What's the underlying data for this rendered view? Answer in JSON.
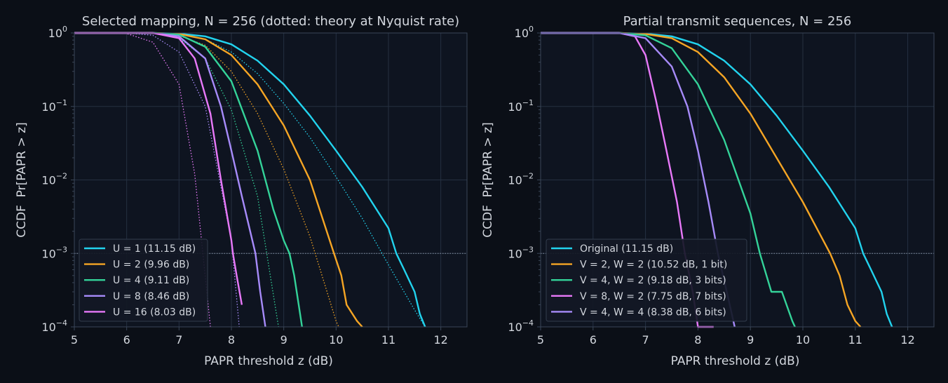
{
  "colors": {
    "background": "#0b0f17",
    "axes_face": "#0e1420",
    "grid": "#253041",
    "spine": "#3a4658",
    "text": "#d3d7de",
    "U1": "#22d3ee",
    "U2": "#f5a524",
    "U4": "#34d399",
    "U8": "#a78bfa",
    "U16": "#e879f9"
  },
  "chart_data": [
    {
      "type": "line",
      "title": "Selected mapping, N = 256 (dotted: theory at Nyquist rate)",
      "xlabel": "PAPR threshold z (dB)",
      "ylabel": "CCDF  Pr[PAPR > z]",
      "xlim": [
        5,
        12.5
      ],
      "ylim": [
        0.0001,
        1
      ],
      "yscale": "log",
      "xticks": [
        "5",
        "6",
        "7",
        "8",
        "9",
        "10",
        "11",
        "12"
      ],
      "yticks": [
        "10^0",
        "10^-1",
        "10^-2",
        "10^-3",
        "10^-4"
      ],
      "grid": true,
      "legend_position": "lower-left",
      "reference_line_y": 0.001,
      "series": [
        {
          "name": "U = 1 (11.15 dB)",
          "color": "#22d3ee",
          "style": "solid",
          "x": [
            5,
            6.5,
            7,
            7.5,
            8,
            8.5,
            9,
            9.5,
            10,
            10.5,
            11,
            11.15,
            11.3,
            11.5,
            11.6,
            11.7
          ],
          "y": [
            1,
            1,
            0.98,
            0.9,
            0.7,
            0.42,
            0.2,
            0.075,
            0.025,
            0.008,
            0.0022,
            0.001,
            0.0006,
            0.0003,
            0.00015,
            0.0001
          ]
        },
        {
          "name": "U = 2 (9.96 dB)",
          "color": "#f5a524",
          "style": "solid",
          "x": [
            5,
            6.5,
            7,
            7.5,
            8,
            8.5,
            9,
            9.5,
            9.96,
            10.1,
            10.2,
            10.4,
            10.5
          ],
          "y": [
            1,
            1,
            0.97,
            0.82,
            0.5,
            0.2,
            0.055,
            0.01,
            0.001,
            0.0005,
            0.0002,
            0.00012,
            0.0001
          ]
        },
        {
          "name": "U = 4 (9.11 dB)",
          "color": "#34d399",
          "style": "solid",
          "x": [
            5,
            6.5,
            7,
            7.5,
            8,
            8.5,
            8.8,
            9,
            9.11,
            9.2,
            9.35
          ],
          "y": [
            1,
            1,
            0.95,
            0.65,
            0.22,
            0.025,
            0.004,
            0.0015,
            0.001,
            0.0005,
            0.0001
          ]
        },
        {
          "name": "U = 8 (8.46 dB)",
          "color": "#a78bfa",
          "style": "solid",
          "x": [
            5,
            6.5,
            7,
            7.5,
            7.8,
            8,
            8.2,
            8.46,
            8.55,
            8.65
          ],
          "y": [
            1,
            1,
            0.9,
            0.45,
            0.1,
            0.025,
            0.006,
            0.001,
            0.0003,
            0.0001
          ]
        },
        {
          "name": "U = 16 (8.03 dB)",
          "color": "#e879f9",
          "style": "solid",
          "x": [
            5,
            6.5,
            7,
            7.3,
            7.6,
            7.8,
            8,
            8.03,
            8.1,
            8.2
          ],
          "y": [
            1,
            1,
            0.85,
            0.45,
            0.08,
            0.01,
            0.0015,
            0.001,
            0.0005,
            0.0002
          ]
        },
        {
          "name": "",
          "color": "#22d3ee",
          "style": "dotted",
          "x": [
            5,
            6.5,
            7,
            7.5,
            8,
            8.5,
            9,
            9.5,
            10,
            10.5,
            11,
            11.5,
            11.7
          ],
          "y": [
            1,
            1,
            0.96,
            0.82,
            0.55,
            0.28,
            0.11,
            0.038,
            0.011,
            0.003,
            0.0007,
            0.00017,
            0.0001
          ]
        },
        {
          "name": "",
          "color": "#f5a524",
          "style": "dotted",
          "x": [
            5,
            6.5,
            7,
            7.5,
            8,
            8.5,
            9,
            9.5,
            10,
            10.05
          ],
          "y": [
            1,
            1,
            0.92,
            0.68,
            0.3,
            0.08,
            0.014,
            0.0017,
            0.00012,
            0.0001
          ]
        },
        {
          "name": "",
          "color": "#34d399",
          "style": "dotted",
          "x": [
            5,
            6.5,
            7,
            7.5,
            8,
            8.5,
            8.9
          ],
          "y": [
            1,
            1,
            0.85,
            0.45,
            0.09,
            0.006,
            0.0001
          ]
        },
        {
          "name": "",
          "color": "#a78bfa",
          "style": "dotted",
          "x": [
            5,
            6,
            6.5,
            7,
            7.5,
            8,
            8.15
          ],
          "y": [
            1,
            1,
            0.93,
            0.55,
            0.1,
            0.0015,
            0.0001
          ]
        },
        {
          "name": "",
          "color": "#e879f9",
          "style": "dotted",
          "x": [
            5,
            6,
            6.5,
            7,
            7.3,
            7.6
          ],
          "y": [
            1,
            0.98,
            0.75,
            0.2,
            0.012,
            0.0001
          ]
        }
      ]
    },
    {
      "type": "line",
      "title": "Partial transmit sequences, N = 256",
      "xlabel": "PAPR threshold z (dB)",
      "ylabel": "CCDF  Pr[PAPR > z]",
      "xlim": [
        5,
        12.5
      ],
      "ylim": [
        0.0001,
        1
      ],
      "yscale": "log",
      "xticks": [
        "5",
        "6",
        "7",
        "8",
        "9",
        "10",
        "11",
        "12"
      ],
      "yticks": [
        "10^0",
        "10^-1",
        "10^-2",
        "10^-3",
        "10^-4"
      ],
      "grid": true,
      "legend_position": "lower-left",
      "reference_line_y": 0.001,
      "series": [
        {
          "name": "Original (11.15 dB)",
          "color": "#22d3ee",
          "style": "solid",
          "x": [
            5,
            6.5,
            7,
            7.5,
            8,
            8.5,
            9,
            9.5,
            10,
            10.5,
            11,
            11.15,
            11.3,
            11.5,
            11.6,
            11.7
          ],
          "y": [
            1,
            1,
            0.98,
            0.9,
            0.7,
            0.42,
            0.2,
            0.075,
            0.025,
            0.008,
            0.0022,
            0.001,
            0.0006,
            0.0003,
            0.00015,
            0.0001
          ]
        },
        {
          "name": "V = 2, W = 2 (10.52 dB, 1 bit)",
          "color": "#f5a524",
          "style": "solid",
          "x": [
            5,
            6.5,
            7,
            7.5,
            8,
            8.5,
            9,
            9.5,
            10,
            10.52,
            10.7,
            10.85,
            11,
            11.1
          ],
          "y": [
            1,
            1,
            0.97,
            0.85,
            0.55,
            0.25,
            0.08,
            0.02,
            0.005,
            0.001,
            0.0005,
            0.0002,
            0.00012,
            0.0001
          ]
        },
        {
          "name": "V = 4, W = 2 (9.18 dB, 3 bits)",
          "color": "#34d399",
          "style": "solid",
          "x": [
            5,
            6.5,
            7,
            7.5,
            8,
            8.5,
            9,
            9.18,
            9.4,
            9.6,
            9.8,
            9.85
          ],
          "y": [
            1,
            1,
            0.93,
            0.62,
            0.2,
            0.035,
            0.0035,
            0.001,
            0.0003,
            0.0003,
            0.00012,
            0.0001
          ]
        },
        {
          "name": "V = 8, W = 2 (7.75 dB, 7 bits)",
          "color": "#e879f9",
          "style": "solid",
          "x": [
            5,
            6.5,
            6.8,
            7,
            7.2,
            7.4,
            7.6,
            7.75,
            7.9,
            8,
            8.3
          ],
          "y": [
            1,
            1,
            0.9,
            0.5,
            0.12,
            0.025,
            0.005,
            0.001,
            0.0003,
            0.0001,
            0.0001
          ]
        },
        {
          "name": "V = 4, W = 4 (8.38 dB, 6 bits)",
          "color": "#a78bfa",
          "style": "solid",
          "x": [
            5,
            6.5,
            7,
            7.5,
            7.8,
            8,
            8.2,
            8.38,
            8.55,
            8.7
          ],
          "y": [
            1,
            1,
            0.85,
            0.35,
            0.1,
            0.025,
            0.005,
            0.001,
            0.0003,
            0.0001
          ]
        }
      ]
    }
  ]
}
